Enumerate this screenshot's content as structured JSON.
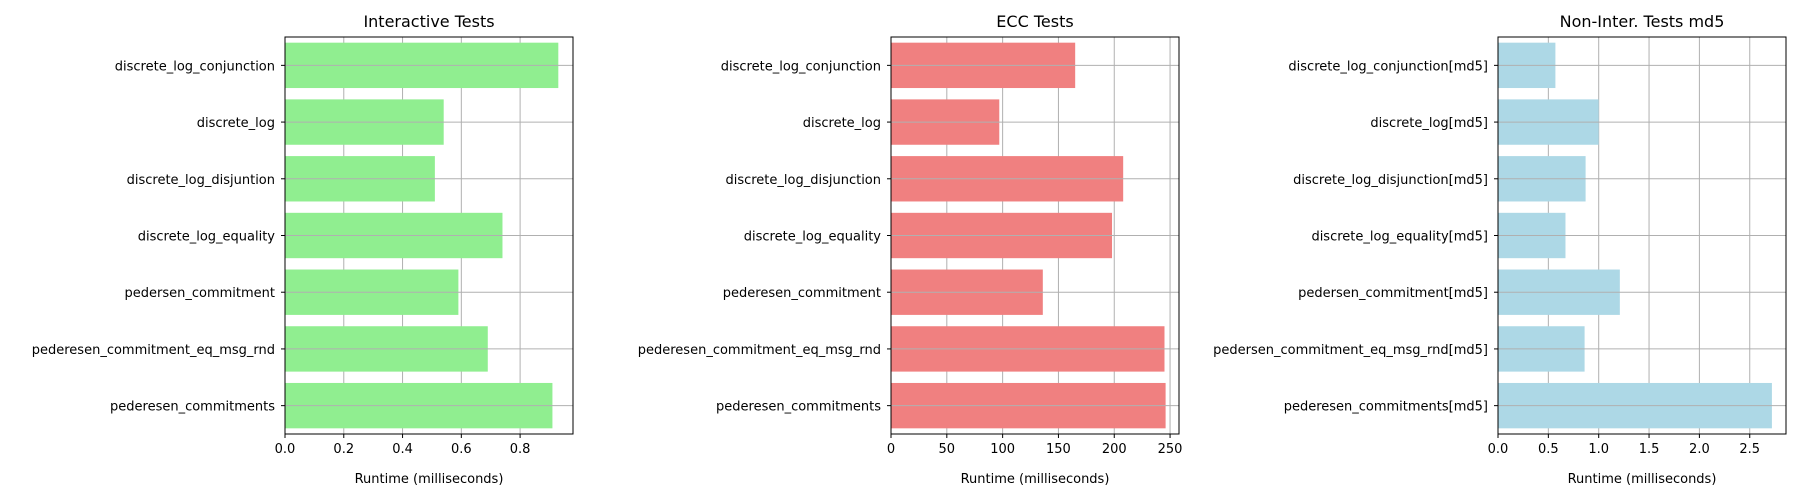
{
  "chart_data": [
    {
      "type": "bar",
      "orientation": "horizontal",
      "title": "Interactive Tests",
      "xlabel": "Runtime (milliseconds)",
      "ylabel": "",
      "categories": [
        "discrete_log_conjunction",
        "discrete_log",
        "discrete_log_disjuntion",
        "discrete_log_equality",
        "pedersen_commitment",
        "pederesen_commitment_eq_msg_rnd",
        "pederesen_commitments"
      ],
      "values": [
        0.93,
        0.54,
        0.51,
        0.74,
        0.59,
        0.69,
        0.91
      ],
      "xlim": [
        0,
        0.98
      ],
      "xticks": [
        0.0,
        0.2,
        0.4,
        0.6,
        0.8
      ],
      "xtick_labels": [
        "0.0",
        "0.2",
        "0.4",
        "0.6",
        "0.8"
      ],
      "color": "#90ee90",
      "grid": true
    },
    {
      "type": "bar",
      "orientation": "horizontal",
      "title": "ECC Tests",
      "xlabel": "Runtime (milliseconds)",
      "ylabel": "",
      "categories": [
        "discrete_log_conjunction",
        "discrete_log",
        "discrete_log_disjunction",
        "discrete_log_equality",
        "pederesen_commitment",
        "pederesen_commitment_eq_msg_rnd",
        "pederesen_commitments"
      ],
      "values": [
        165,
        97,
        208,
        198,
        136,
        245,
        246
      ],
      "xlim": [
        0,
        258
      ],
      "xticks": [
        0,
        50,
        100,
        150,
        200,
        250
      ],
      "xtick_labels": [
        "0",
        "50",
        "100",
        "150",
        "200",
        "250"
      ],
      "color": "#f08080",
      "grid": true
    },
    {
      "type": "bar",
      "orientation": "horizontal",
      "title": "Non-Inter. Tests md5",
      "xlabel": "Runtime (milliseconds)",
      "ylabel": "",
      "categories": [
        "discrete_log_conjunction[md5]",
        "discrete_log[md5]",
        "discrete_log_disjunction[md5]",
        "discrete_log_equality[md5]",
        "pedersen_commitment[md5]",
        "pedersen_commitment_eq_msg_rnd[md5]",
        "pederesen_commitments[md5]"
      ],
      "values": [
        0.57,
        1.0,
        0.87,
        0.67,
        1.21,
        0.86,
        2.72
      ],
      "xlim": [
        0,
        2.86
      ],
      "xticks": [
        0.0,
        0.5,
        1.0,
        1.5,
        2.0,
        2.5
      ],
      "xtick_labels": [
        "0.0",
        "0.5",
        "1.0",
        "1.5",
        "2.0",
        "2.5"
      ],
      "color": "#add8e6",
      "grid": true
    }
  ]
}
